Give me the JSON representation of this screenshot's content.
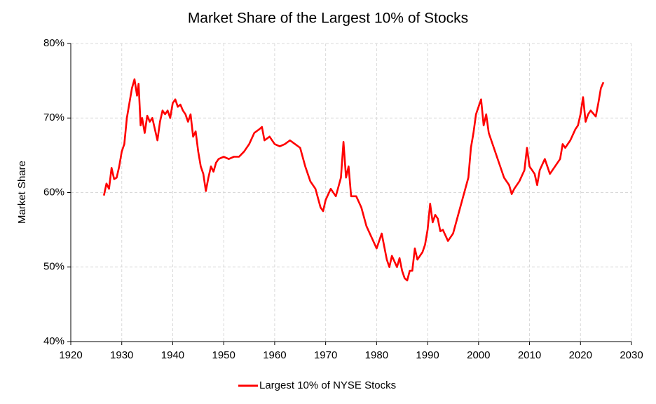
{
  "chart_data": {
    "type": "line",
    "title": "Market Share of the Largest 10% of Stocks",
    "y_label": "Market Share",
    "x": [
      1926.5,
      1927,
      1927.5,
      1928,
      1928.5,
      1929,
      1929.5,
      1930,
      1930.5,
      1931,
      1931.5,
      1932,
      1932.5,
      1933,
      1933.3,
      1933.7,
      1934,
      1934.5,
      1935,
      1935.5,
      1936,
      1936.5,
      1937,
      1937.5,
      1938,
      1938.5,
      1939,
      1939.5,
      1940,
      1940.5,
      1941,
      1941.5,
      1942,
      1942.5,
      1943,
      1943.5,
      1944,
      1944.5,
      1945,
      1945.5,
      1946,
      1946.5,
      1947,
      1947.5,
      1948,
      1948.5,
      1949,
      1950,
      1951,
      1952,
      1953,
      1954,
      1955,
      1956,
      1957,
      1957.5,
      1958,
      1959,
      1960,
      1961,
      1962,
      1963,
      1964,
      1965,
      1966,
      1967,
      1968,
      1969,
      1969.5,
      1970,
      1971,
      1972,
      1973,
      1973.5,
      1974,
      1974.5,
      1975,
      1976,
      1977,
      1978,
      1979,
      1980,
      1981,
      1982,
      1982.5,
      1983,
      1984,
      1984.5,
      1985,
      1985.5,
      1986,
      1986.5,
      1987,
      1987.5,
      1988,
      1989,
      1989.5,
      1990,
      1990.5,
      1991,
      1991.5,
      1992,
      1992.5,
      1993,
      1994,
      1995,
      1996,
      1997,
      1998,
      1998.5,
      1999,
      1999.5,
      2000,
      2000.5,
      2001,
      2001.5,
      2002,
      2003,
      2004,
      2005,
      2006,
      2006.5,
      2007,
      2008,
      2009,
      2009.5,
      2010,
      2011,
      2011.5,
      2012,
      2013,
      2014,
      2015,
      2016,
      2016.5,
      2017,
      2018,
      2019,
      2019.5,
      2020,
      2020.5,
      2021,
      2021.5,
      2022,
      2023,
      2023.5,
      2024,
      2024.5
    ],
    "series": [
      {
        "name": "Largest 10% of NYSE Stocks",
        "color": "#ff0000",
        "values": [
          59.6,
          61.2,
          60.5,
          63.3,
          61.8,
          62,
          63.5,
          65.5,
          66.5,
          70,
          72,
          74,
          75.2,
          73,
          74.6,
          69,
          70,
          68,
          70.3,
          69.5,
          70,
          68.5,
          67,
          69.5,
          71,
          70.5,
          71,
          70,
          72,
          72.5,
          71.5,
          71.8,
          71,
          70.5,
          69.5,
          70.5,
          67.5,
          68.2,
          65.5,
          63.5,
          62.5,
          60.2,
          62,
          63.5,
          62.8,
          64,
          64.5,
          64.8,
          64.5,
          64.8,
          64.8,
          65.5,
          66.5,
          68,
          68.5,
          68.8,
          67,
          67.5,
          66.5,
          66.2,
          66.5,
          67,
          66.5,
          66,
          63.5,
          61.5,
          60.5,
          58,
          57.5,
          59,
          60.5,
          59.5,
          62,
          66.8,
          62,
          63.5,
          59.5,
          59.5,
          58,
          55.5,
          54,
          52.5,
          54.5,
          51,
          50,
          51.5,
          50,
          51.2,
          49.5,
          48.5,
          48.2,
          49.5,
          49.5,
          52.5,
          51,
          52,
          53,
          55,
          58.5,
          56,
          57,
          56.5,
          54.8,
          55,
          53.5,
          54.5,
          57,
          59.5,
          62,
          66,
          68,
          70.5,
          71.5,
          72.5,
          69,
          70.5,
          68,
          66,
          64,
          62,
          61,
          59.8,
          60.5,
          61.5,
          63,
          66,
          63.5,
          62.5,
          61,
          63,
          64.5,
          62.5,
          63.5,
          64.5,
          66.5,
          66,
          67,
          68.5,
          69,
          70.5,
          72.8,
          69.5,
          70.5,
          71,
          70.2,
          72,
          74,
          74.8
        ]
      }
    ],
    "xlim": [
      1920,
      2030
    ],
    "xticks": [
      1920,
      1930,
      1940,
      1950,
      1960,
      1970,
      1980,
      1990,
      2000,
      2010,
      2020,
      2030
    ],
    "ylim": [
      40,
      80
    ],
    "yticks": [
      {
        "value": 40,
        "label": "40%"
      },
      {
        "value": 50,
        "label": "50%"
      },
      {
        "value": 60,
        "label": "60%"
      },
      {
        "value": 70,
        "label": "70%"
      },
      {
        "value": 80,
        "label": "80%"
      }
    ],
    "grid": true,
    "legend": "bottom"
  }
}
